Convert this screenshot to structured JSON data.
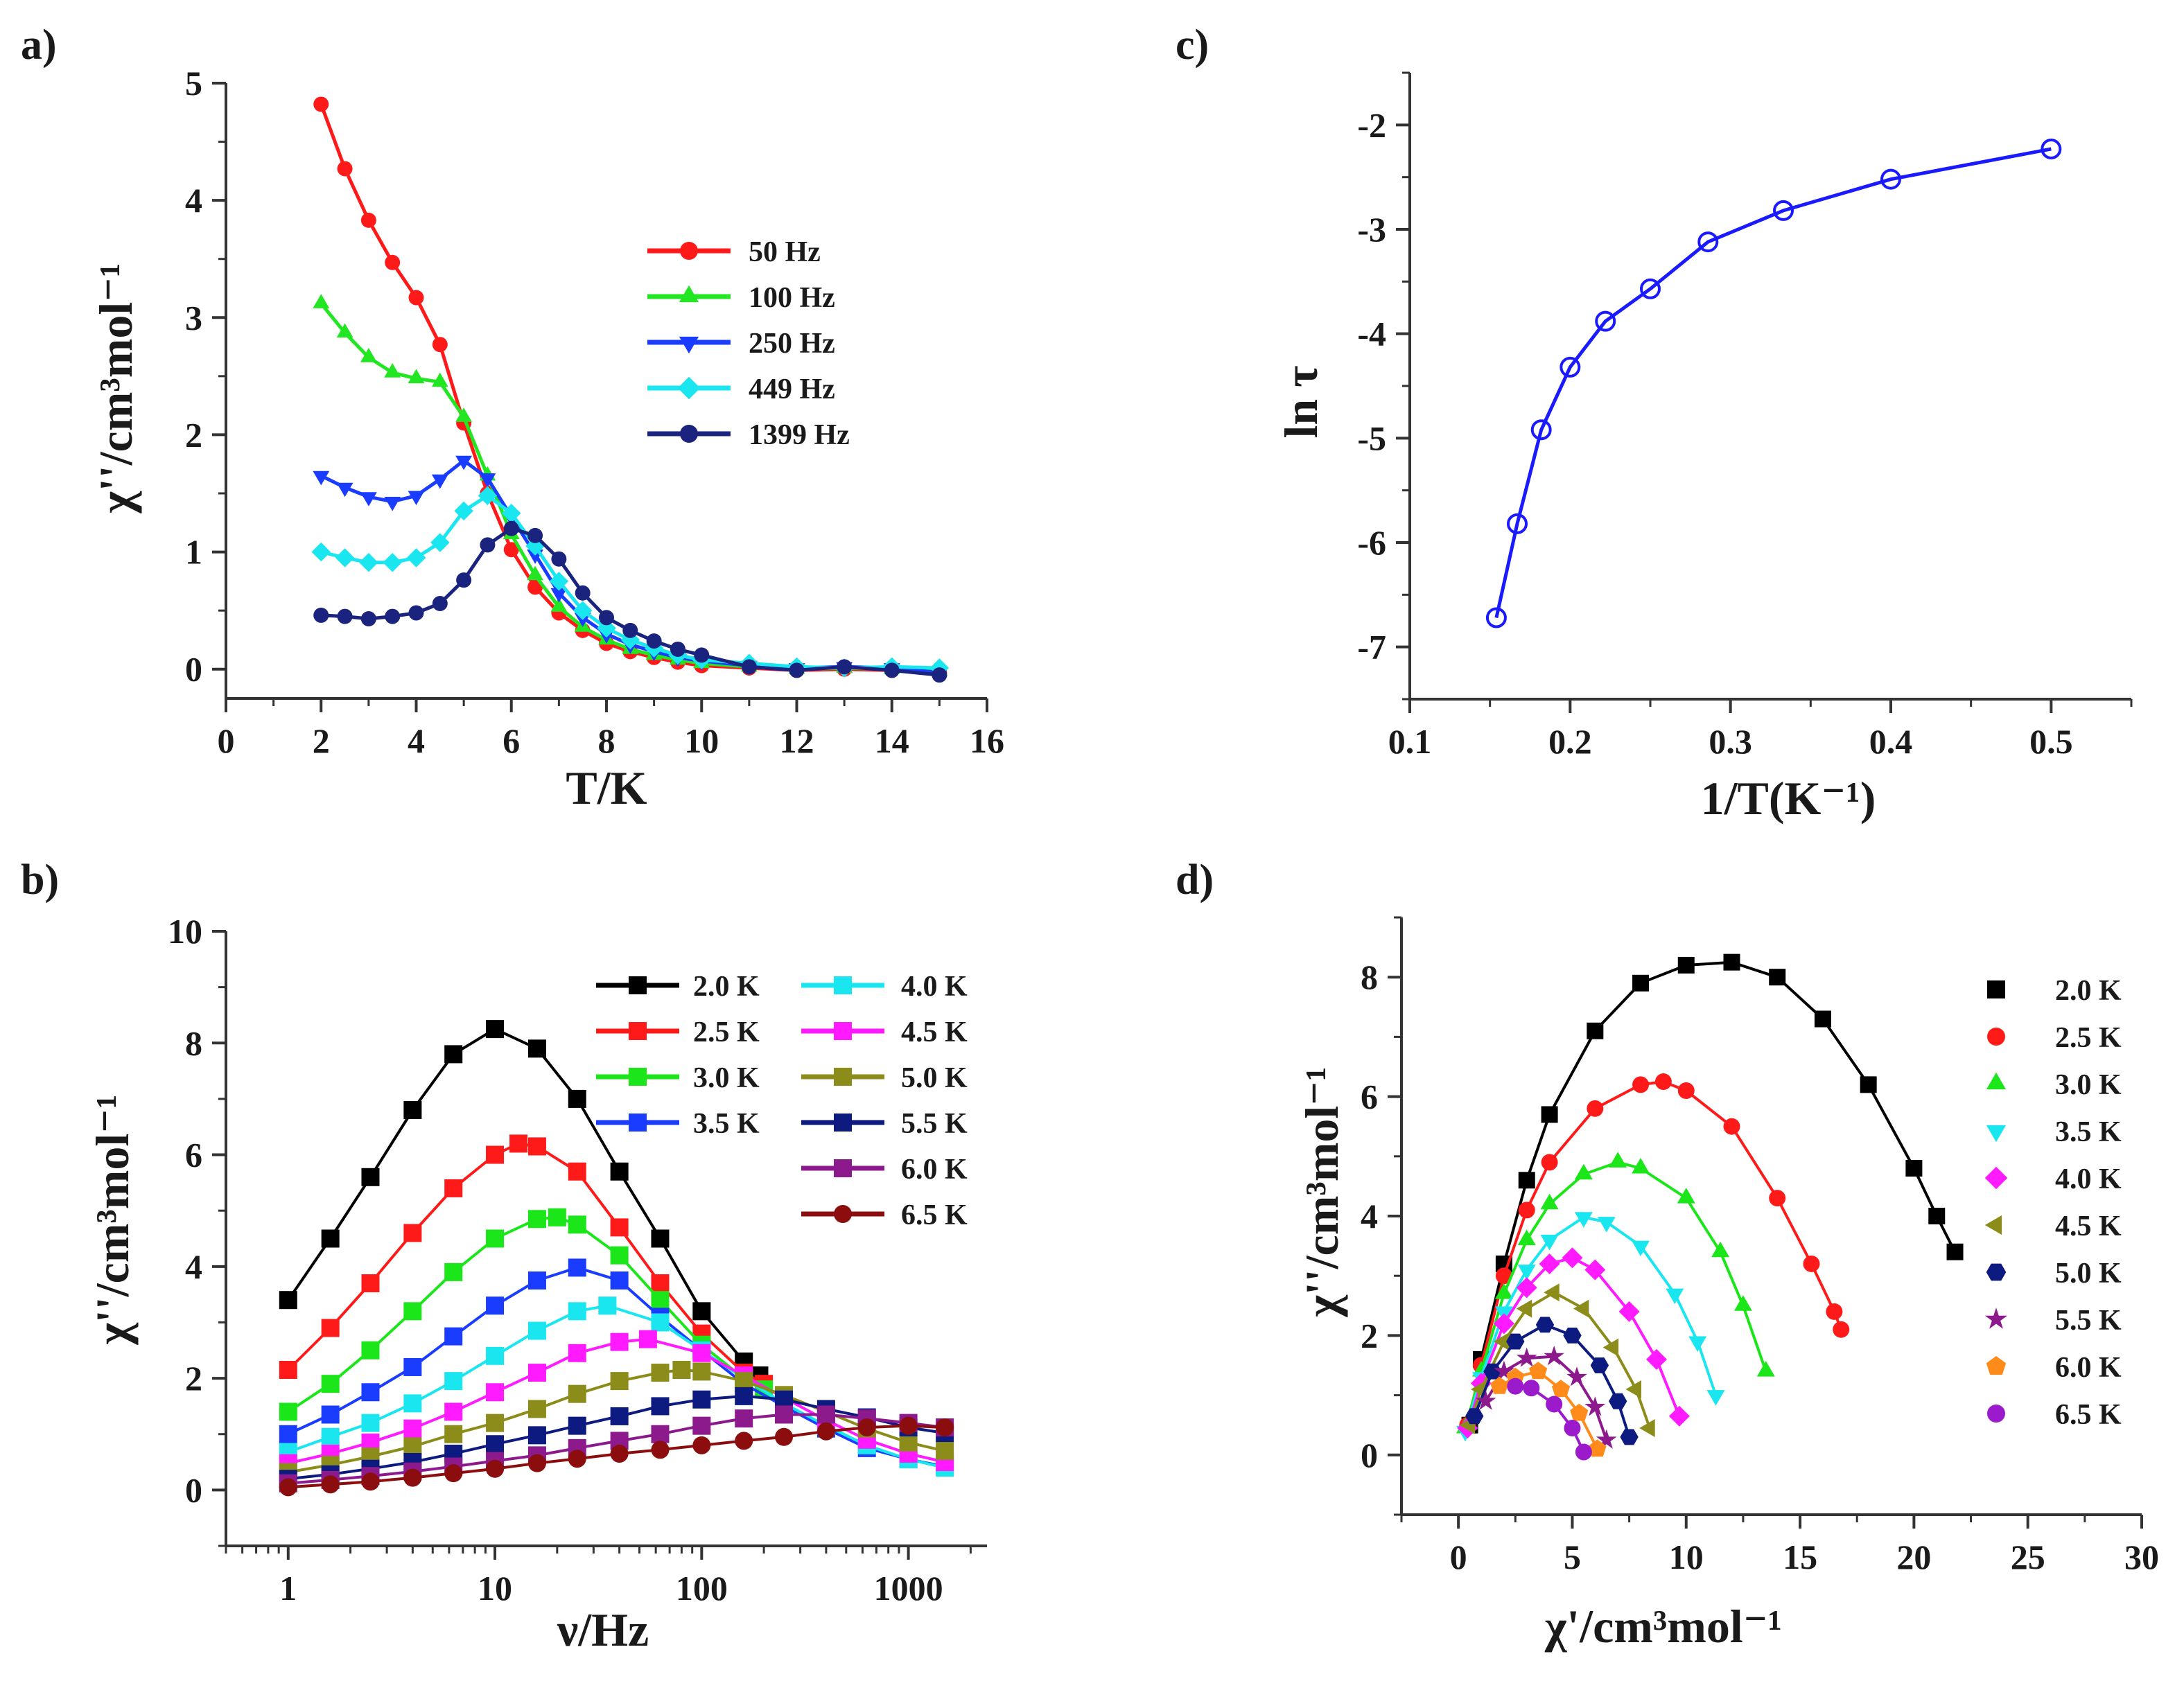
{
  "chart_data": [
    {
      "id": "a",
      "panel_label": "a)",
      "type": "line",
      "xlabel": "T/K",
      "ylabel": "χ''/cm³mol⁻¹",
      "xscale": "linear",
      "xlim": [
        0,
        16
      ],
      "ylim": [
        -0.25,
        5
      ],
      "xticks": [
        0,
        2,
        4,
        6,
        8,
        10,
        12,
        14,
        16
      ],
      "xminor": 1,
      "yticks": [
        0,
        1,
        2,
        3,
        4,
        5
      ],
      "yminor": 0.5,
      "legend_placement": "top-right",
      "series": [
        {
          "name": "50 Hz",
          "color": "#ff1a1a",
          "marker": "circle",
          "x": [
            2,
            2.5,
            3,
            3.5,
            4,
            4.5,
            5,
            5.5,
            6,
            6.5,
            7,
            7.5,
            8,
            8.5,
            9,
            9.5,
            10,
            11,
            12,
            13,
            14,
            15
          ],
          "y": [
            4.82,
            4.27,
            3.83,
            3.47,
            3.17,
            2.77,
            2.1,
            1.5,
            1.02,
            0.7,
            0.48,
            0.33,
            0.22,
            0.15,
            0.1,
            0.06,
            0.03,
            0.01,
            -0.01,
            0,
            -0.01,
            -0.03
          ]
        },
        {
          "name": "100 Hz",
          "color": "#22e622",
          "marker": "triangle-up",
          "x": [
            2,
            2.5,
            3,
            3.5,
            4,
            4.5,
            5,
            5.5,
            6,
            6.5,
            7,
            7.5,
            8,
            8.5,
            9,
            9.5,
            10,
            11,
            12,
            13,
            14,
            15
          ],
          "y": [
            3.12,
            2.87,
            2.66,
            2.53,
            2.48,
            2.45,
            2.15,
            1.65,
            1.15,
            0.8,
            0.53,
            0.36,
            0.25,
            0.17,
            0.12,
            0.08,
            0.05,
            0.02,
            0,
            0.01,
            0,
            -0.02
          ]
        },
        {
          "name": "250 Hz",
          "color": "#1a3cff",
          "marker": "triangle-down",
          "x": [
            2,
            2.5,
            3,
            3.5,
            4,
            4.5,
            5,
            5.5,
            6,
            6.5,
            7,
            7.5,
            8,
            8.5,
            9,
            9.5,
            10,
            11,
            12,
            13,
            14,
            15
          ],
          "y": [
            1.65,
            1.55,
            1.47,
            1.43,
            1.48,
            1.62,
            1.78,
            1.63,
            1.3,
            0.98,
            0.65,
            0.44,
            0.3,
            0.21,
            0.15,
            0.1,
            0.07,
            0.03,
            0.01,
            0.02,
            0.01,
            -0.03
          ]
        },
        {
          "name": "449 Hz",
          "color": "#1ae6f0",
          "marker": "diamond",
          "x": [
            2,
            2.5,
            3,
            3.5,
            4,
            4.5,
            5,
            5.5,
            6,
            6.5,
            7,
            7.5,
            8,
            8.5,
            9,
            9.5,
            10,
            11,
            12,
            13,
            14,
            15
          ],
          "y": [
            1.0,
            0.95,
            0.91,
            0.91,
            0.95,
            1.08,
            1.35,
            1.48,
            1.33,
            1.05,
            0.75,
            0.5,
            0.35,
            0.25,
            0.18,
            0.12,
            0.08,
            0.05,
            0.02,
            0.01,
            0.02,
            0.01
          ]
        },
        {
          "name": "1399 Hz",
          "color": "#1a237e",
          "marker": "circle",
          "x": [
            2,
            2.5,
            3,
            3.5,
            4,
            4.5,
            5,
            5.5,
            6,
            6.5,
            7,
            7.5,
            8,
            8.5,
            9,
            9.5,
            10,
            11,
            12,
            13,
            14,
            15
          ],
          "y": [
            0.46,
            0.45,
            0.43,
            0.45,
            0.48,
            0.56,
            0.76,
            1.06,
            1.2,
            1.14,
            0.94,
            0.65,
            0.44,
            0.33,
            0.24,
            0.17,
            0.12,
            0.02,
            -0.01,
            0.02,
            -0.01,
            -0.05
          ]
        }
      ]
    },
    {
      "id": "b",
      "panel_label": "b)",
      "type": "line",
      "xlabel": "ν/Hz",
      "ylabel": "χ''/cm³mol⁻¹",
      "xscale": "log",
      "xlim": [
        0.5,
        2400
      ],
      "ylim": [
        -1,
        10
      ],
      "xticks": [
        1,
        10,
        100,
        1000
      ],
      "xtick_labels": [
        "1",
        "10",
        "100",
        "1000"
      ],
      "yticks": [
        0,
        2,
        4,
        6,
        8,
        10
      ],
      "yminor": 1,
      "legend_placement": "top-right",
      "series": [
        {
          "name": "2.0 K",
          "color": "#000000",
          "marker": "square",
          "x": [
            1,
            1.6,
            2.5,
            4,
            6.3,
            10,
            16,
            25,
            40,
            63,
            100,
            160,
            190
          ],
          "y": [
            3.4,
            4.5,
            5.6,
            6.8,
            7.8,
            8.25,
            7.9,
            7.0,
            5.7,
            4.5,
            3.2,
            2.3,
            2.05
          ]
        },
        {
          "name": "2.5 K",
          "color": "#ff1a1a",
          "marker": "square",
          "x": [
            1,
            1.6,
            2.5,
            4,
            6.3,
            10,
            13,
            16,
            25,
            40,
            63,
            100,
            160,
            200
          ],
          "y": [
            2.15,
            2.9,
            3.7,
            4.6,
            5.4,
            6.0,
            6.2,
            6.15,
            5.7,
            4.7,
            3.7,
            2.8,
            2.1,
            1.9
          ]
        },
        {
          "name": "3.0 K",
          "color": "#1ae61a",
          "marker": "square",
          "x": [
            1,
            1.6,
            2.5,
            4,
            6.3,
            10,
            16,
            20,
            25,
            40,
            63,
            100,
            160,
            200
          ],
          "y": [
            1.4,
            1.9,
            2.5,
            3.2,
            3.9,
            4.5,
            4.85,
            4.88,
            4.75,
            4.2,
            3.4,
            2.6,
            2.0,
            1.8
          ]
        },
        {
          "name": "3.5 K",
          "color": "#1a3cff",
          "marker": "square",
          "x": [
            1,
            1.6,
            2.5,
            4,
            6.3,
            10,
            16,
            25,
            40,
            63,
            100,
            160,
            250,
            400,
            630,
            1000,
            1500
          ],
          "y": [
            1.0,
            1.35,
            1.75,
            2.2,
            2.75,
            3.3,
            3.75,
            3.98,
            3.75,
            3.1,
            2.5,
            1.9,
            1.5,
            1.1,
            0.75,
            0.55,
            0.42
          ]
        },
        {
          "name": "4.0 K",
          "color": "#1ae6f0",
          "marker": "square",
          "x": [
            1,
            1.6,
            2.5,
            4,
            6.3,
            10,
            16,
            25,
            35,
            63,
            100,
            160,
            250,
            400,
            630,
            1000,
            1500
          ],
          "y": [
            0.68,
            0.95,
            1.2,
            1.55,
            1.95,
            2.4,
            2.85,
            3.2,
            3.3,
            3.0,
            2.5,
            2.0,
            1.55,
            1.15,
            0.8,
            0.55,
            0.4
          ]
        },
        {
          "name": "4.5 K",
          "color": "#ff1aff",
          "marker": "square",
          "x": [
            1,
            1.6,
            2.5,
            4,
            6.3,
            10,
            16,
            25,
            40,
            55,
            100,
            160,
            250,
            400,
            630,
            1000,
            1500
          ],
          "y": [
            0.48,
            0.65,
            0.85,
            1.1,
            1.4,
            1.75,
            2.1,
            2.45,
            2.65,
            2.7,
            2.45,
            2.05,
            1.65,
            1.25,
            0.9,
            0.65,
            0.5
          ]
        },
        {
          "name": "5.0 K",
          "color": "#8c8c1a",
          "marker": "square",
          "x": [
            1,
            1.6,
            2.5,
            4,
            6.3,
            10,
            16,
            25,
            40,
            63,
            80,
            100,
            160,
            250,
            400,
            630,
            1000,
            1500
          ],
          "y": [
            0.32,
            0.45,
            0.6,
            0.78,
            1.0,
            1.2,
            1.45,
            1.72,
            1.95,
            2.1,
            2.15,
            2.12,
            1.95,
            1.7,
            1.4,
            1.1,
            0.85,
            0.7
          ]
        },
        {
          "name": "5.5 K",
          "color": "#0d1a80",
          "marker": "square",
          "x": [
            1,
            1.6,
            2.5,
            4,
            6.3,
            10,
            16,
            25,
            40,
            63,
            100,
            160,
            250,
            400,
            630,
            1000,
            1500
          ],
          "y": [
            0.2,
            0.28,
            0.38,
            0.5,
            0.65,
            0.82,
            0.98,
            1.15,
            1.32,
            1.5,
            1.62,
            1.68,
            1.62,
            1.45,
            1.3,
            1.12,
            1.02
          ]
        },
        {
          "name": "6.0 K",
          "color": "#8c1a8c",
          "marker": "square",
          "x": [
            1,
            1.6,
            2.5,
            4,
            6.3,
            10,
            16,
            25,
            40,
            63,
            100,
            160,
            250,
            400,
            630,
            1000,
            1500
          ],
          "y": [
            0.12,
            0.18,
            0.25,
            0.33,
            0.42,
            0.52,
            0.62,
            0.75,
            0.88,
            1.0,
            1.15,
            1.28,
            1.35,
            1.35,
            1.28,
            1.2,
            1.12
          ]
        },
        {
          "name": "6.5 K",
          "color": "#8c0d0d",
          "marker": "circle",
          "x": [
            1,
            1.6,
            2.5,
            4,
            6.3,
            10,
            16,
            25,
            40,
            63,
            100,
            160,
            250,
            400,
            630,
            1000,
            1500
          ],
          "y": [
            0.05,
            0.1,
            0.15,
            0.22,
            0.3,
            0.38,
            0.48,
            0.56,
            0.65,
            0.72,
            0.8,
            0.88,
            0.95,
            1.05,
            1.12,
            1.15,
            1.12
          ]
        }
      ]
    },
    {
      "id": "c",
      "panel_label": "c)",
      "type": "line",
      "xlabel": "1/T(K⁻¹)",
      "ylabel": "ln τ",
      "xscale": "linear",
      "xlim": [
        0.1,
        0.55
      ],
      "ylim": [
        -7.5,
        -1.5
      ],
      "xticks": [
        0.1,
        0.2,
        0.3,
        0.4,
        0.5
      ],
      "xminor": 0.05,
      "yticks": [
        -7,
        -6,
        -5,
        -4,
        -3,
        -2
      ],
      "yminor": 0.5,
      "series": [
        {
          "name": "ln tau",
          "color": "#1a1aff",
          "marker": "open-circle",
          "x": [
            0.154,
            0.167,
            0.182,
            0.2,
            0.222,
            0.25,
            0.286,
            0.333,
            0.4,
            0.5
          ],
          "y": [
            -6.72,
            -5.82,
            -4.92,
            -4.32,
            -3.88,
            -3.57,
            -3.12,
            -2.82,
            -2.52,
            -2.23
          ]
        }
      ]
    },
    {
      "id": "d",
      "panel_label": "d)",
      "type": "scatter",
      "xlabel": "χ'/cm³mol⁻¹",
      "ylabel": "χ''/cm³mol⁻¹",
      "xscale": "linear",
      "xlim": [
        -2.5,
        30
      ],
      "ylim": [
        -1,
        9
      ],
      "xticks": [
        0,
        5,
        10,
        15,
        20,
        25,
        30
      ],
      "xminor": 2.5,
      "yticks": [
        0,
        2,
        4,
        6,
        8
      ],
      "yminor": 1,
      "legend_placement": "right",
      "series": [
        {
          "name": "2.0 K",
          "color": "#000000",
          "marker": "square",
          "x": [
            0.5,
            1,
            2,
            3,
            4,
            6,
            8,
            10,
            12,
            14,
            16,
            18,
            20,
            21,
            21.8
          ],
          "y": [
            0.5,
            1.6,
            3.2,
            4.6,
            5.7,
            7.1,
            7.9,
            8.2,
            8.25,
            8.0,
            7.3,
            6.2,
            4.8,
            4.0,
            3.4
          ]
        },
        {
          "name": "2.5 K",
          "color": "#ff1a1a",
          "marker": "circle",
          "x": [
            0.4,
            1,
            2,
            3,
            4,
            6,
            8,
            9,
            10,
            12,
            14,
            15.5,
            16.5,
            16.8
          ],
          "y": [
            0.5,
            1.5,
            3.0,
            4.1,
            4.9,
            5.8,
            6.2,
            6.25,
            6.1,
            5.5,
            4.3,
            3.2,
            2.4,
            2.1
          ]
        },
        {
          "name": "3.0 K",
          "color": "#1ae61a",
          "marker": "triangle-up",
          "x": [
            0.3,
            1,
            2,
            3,
            4,
            5.5,
            7,
            8,
            10,
            11.5,
            12.5,
            13.5
          ],
          "y": [
            0.45,
            1.4,
            2.7,
            3.6,
            4.2,
            4.7,
            4.9,
            4.8,
            4.3,
            3.4,
            2.5,
            1.4
          ]
        },
        {
          "name": "3.5 K",
          "color": "#1ae6f0",
          "marker": "triangle-down",
          "x": [
            0.3,
            1,
            2,
            3,
            4,
            5.5,
            6.5,
            8,
            9.5,
            10.5,
            11.3
          ],
          "y": [
            0.4,
            1.3,
            2.4,
            3.1,
            3.6,
            3.98,
            3.9,
            3.5,
            2.7,
            1.9,
            1.0
          ]
        },
        {
          "name": "4.0 K",
          "color": "#ff1aff",
          "marker": "diamond",
          "x": [
            0.4,
            1,
            2,
            3,
            4,
            5,
            6,
            7.5,
            8.7,
            9.7
          ],
          "y": [
            0.45,
            1.2,
            2.2,
            2.8,
            3.2,
            3.3,
            3.1,
            2.4,
            1.6,
            0.65
          ]
        },
        {
          "name": "4.5 K",
          "color": "#8c8c1a",
          "marker": "triangle-left",
          "x": [
            0.5,
            1,
            2,
            3,
            4.2,
            5.5,
            6.8,
            7.8,
            8.4
          ],
          "y": [
            0.5,
            1.1,
            1.9,
            2.45,
            2.72,
            2.45,
            1.8,
            1.1,
            0.45
          ]
        },
        {
          "name": "5.0 K",
          "color": "#0d1a80",
          "marker": "hexagon",
          "x": [
            0.7,
            1.5,
            2.5,
            3.8,
            5,
            6.2,
            7,
            7.5
          ],
          "y": [
            0.65,
            1.4,
            1.9,
            2.18,
            2.0,
            1.5,
            0.9,
            0.3
          ]
        },
        {
          "name": "5.5 K",
          "color": "#8c1a8c",
          "marker": "star",
          "x": [
            1.2,
            2,
            3,
            4.2,
            5.2,
            6,
            6.5
          ],
          "y": [
            0.9,
            1.4,
            1.62,
            1.65,
            1.3,
            0.8,
            0.25
          ]
        },
        {
          "name": "6.0 K",
          "color": "#ff8c1a",
          "marker": "pentagon",
          "x": [
            1.8,
            2.5,
            3.5,
            4.5,
            5.3,
            6.1
          ],
          "y": [
            1.15,
            1.3,
            1.4,
            1.1,
            0.7,
            0.1
          ]
        },
        {
          "name": "6.5 K",
          "color": "#9a1acc",
          "marker": "circle",
          "x": [
            2.5,
            3.2,
            4.2,
            5,
            5.5
          ],
          "y": [
            1.15,
            1.12,
            0.85,
            0.45,
            0.05
          ]
        }
      ]
    }
  ]
}
